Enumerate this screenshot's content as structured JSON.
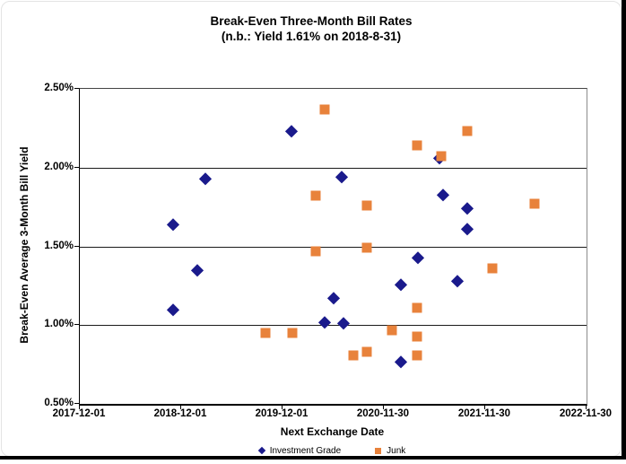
{
  "title": {
    "line1": "Break-Even Three-Month Bill Rates",
    "line2": "(n.b.: Yield 1.61% on 2018-8-31)"
  },
  "frame": {
    "edge_color": "#000000",
    "background": "#ffffff"
  },
  "chart_data": {
    "type": "scatter",
    "title": "Break-Even Three-Month Bill Rates (n.b.: Yield 1.61% on 2018-8-31)",
    "xlabel": "Next Exchange Date",
    "ylabel": "Break-Even Average 3-Month  Bill Yield",
    "grid": "horizontal",
    "legend_position": "bottom",
    "x_axis": {
      "unit": "years since 2017-12-01",
      "min": 0,
      "max": 5,
      "tick_labels": [
        "2017-12-01",
        "2018-12-01",
        "2019-12-01",
        "2020-11-30",
        "2021-11-30",
        "2022-11-30"
      ]
    },
    "y_axis": {
      "unit": "percent",
      "min": 0.5,
      "max": 2.5,
      "tick_labels": [
        "2.50%",
        "2.00%",
        "1.50%",
        "1.00%",
        "0.50%"
      ]
    },
    "series": [
      {
        "name": "Investment Grade",
        "marker": "diamond",
        "color": "#1A1A8C",
        "points": [
          [
            0.92,
            1.64
          ],
          [
            0.92,
            1.1
          ],
          [
            1.16,
            1.35
          ],
          [
            1.24,
            1.93
          ],
          [
            2.09,
            2.23
          ],
          [
            2.42,
            1.02
          ],
          [
            2.5,
            1.17
          ],
          [
            2.58,
            1.94
          ],
          [
            2.6,
            1.01
          ],
          [
            3.17,
            1.26
          ],
          [
            3.17,
            0.77
          ],
          [
            3.34,
            1.43
          ],
          [
            3.55,
            2.06
          ],
          [
            3.58,
            1.83
          ],
          [
            3.73,
            1.28
          ],
          [
            3.82,
            1.74
          ],
          [
            3.82,
            1.61
          ]
        ]
      },
      {
        "name": "Junk",
        "marker": "square",
        "color": "#E8823B",
        "points": [
          [
            1.83,
            0.95
          ],
          [
            2.1,
            0.95
          ],
          [
            2.33,
            1.82
          ],
          [
            2.33,
            1.47
          ],
          [
            2.42,
            2.37
          ],
          [
            2.7,
            0.81
          ],
          [
            2.83,
            1.76
          ],
          [
            2.83,
            1.49
          ],
          [
            2.83,
            0.83
          ],
          [
            3.08,
            0.97
          ],
          [
            3.33,
            2.14
          ],
          [
            3.33,
            1.11
          ],
          [
            3.33,
            0.93
          ],
          [
            3.33,
            0.81
          ],
          [
            3.57,
            2.07
          ],
          [
            3.82,
            2.23
          ],
          [
            4.07,
            1.36
          ],
          [
            4.49,
            1.77
          ]
        ]
      }
    ]
  }
}
